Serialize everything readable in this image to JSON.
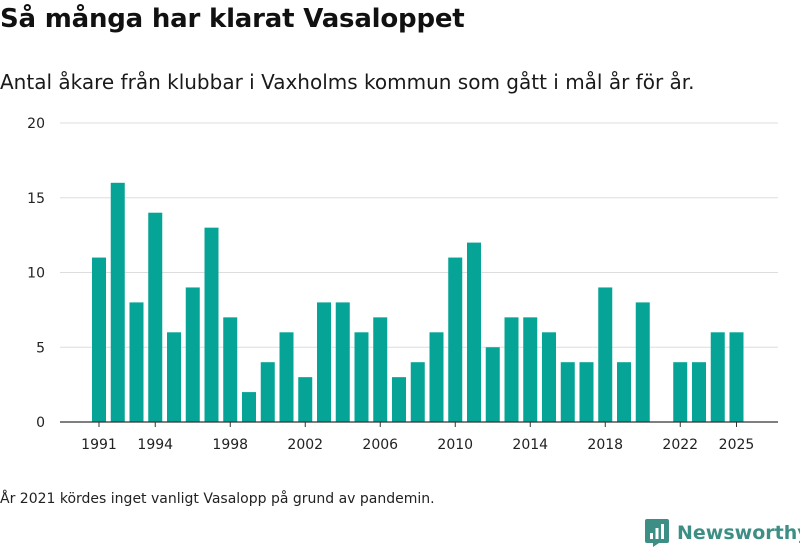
{
  "title": "Så många har klarat Vasaloppet",
  "subtitle": "Antal åkare från klubbar i Vaxholms kommun som gått i mål år för år.",
  "note": "År 2021 kördes inget vanligt Vasalopp på grund av pandemin.",
  "brand": {
    "name": "Newsworthy",
    "icon": "newsworthy-logo-icon",
    "color": "#3d8f86"
  },
  "colors": {
    "bar": "#05a496",
    "grid": "#dddddd",
    "axis": "#333333"
  },
  "chart_data": {
    "type": "bar",
    "x": [
      1991,
      1992,
      1993,
      1994,
      1995,
      1996,
      1997,
      1998,
      1999,
      2000,
      2001,
      2002,
      2003,
      2004,
      2005,
      2006,
      2007,
      2008,
      2009,
      2010,
      2011,
      2012,
      2013,
      2014,
      2015,
      2016,
      2017,
      2018,
      2019,
      2020,
      2021,
      2022,
      2023,
      2024,
      2025
    ],
    "values": [
      11,
      16,
      8,
      14,
      6,
      9,
      13,
      7,
      2,
      4,
      6,
      3,
      8,
      8,
      6,
      7,
      3,
      4,
      6,
      11,
      12,
      5,
      7,
      7,
      6,
      4,
      4,
      9,
      4,
      8,
      null,
      4,
      4,
      6,
      6
    ],
    "x_tick_labels": [
      "1991",
      "1994",
      "1998",
      "2002",
      "2006",
      "2010",
      "2014",
      "2018",
      "2022",
      "2025"
    ],
    "y_tick_labels": [
      "0",
      "5",
      "10",
      "15",
      "20"
    ],
    "ylim": [
      0,
      20
    ],
    "grid": true,
    "legend": "none"
  }
}
